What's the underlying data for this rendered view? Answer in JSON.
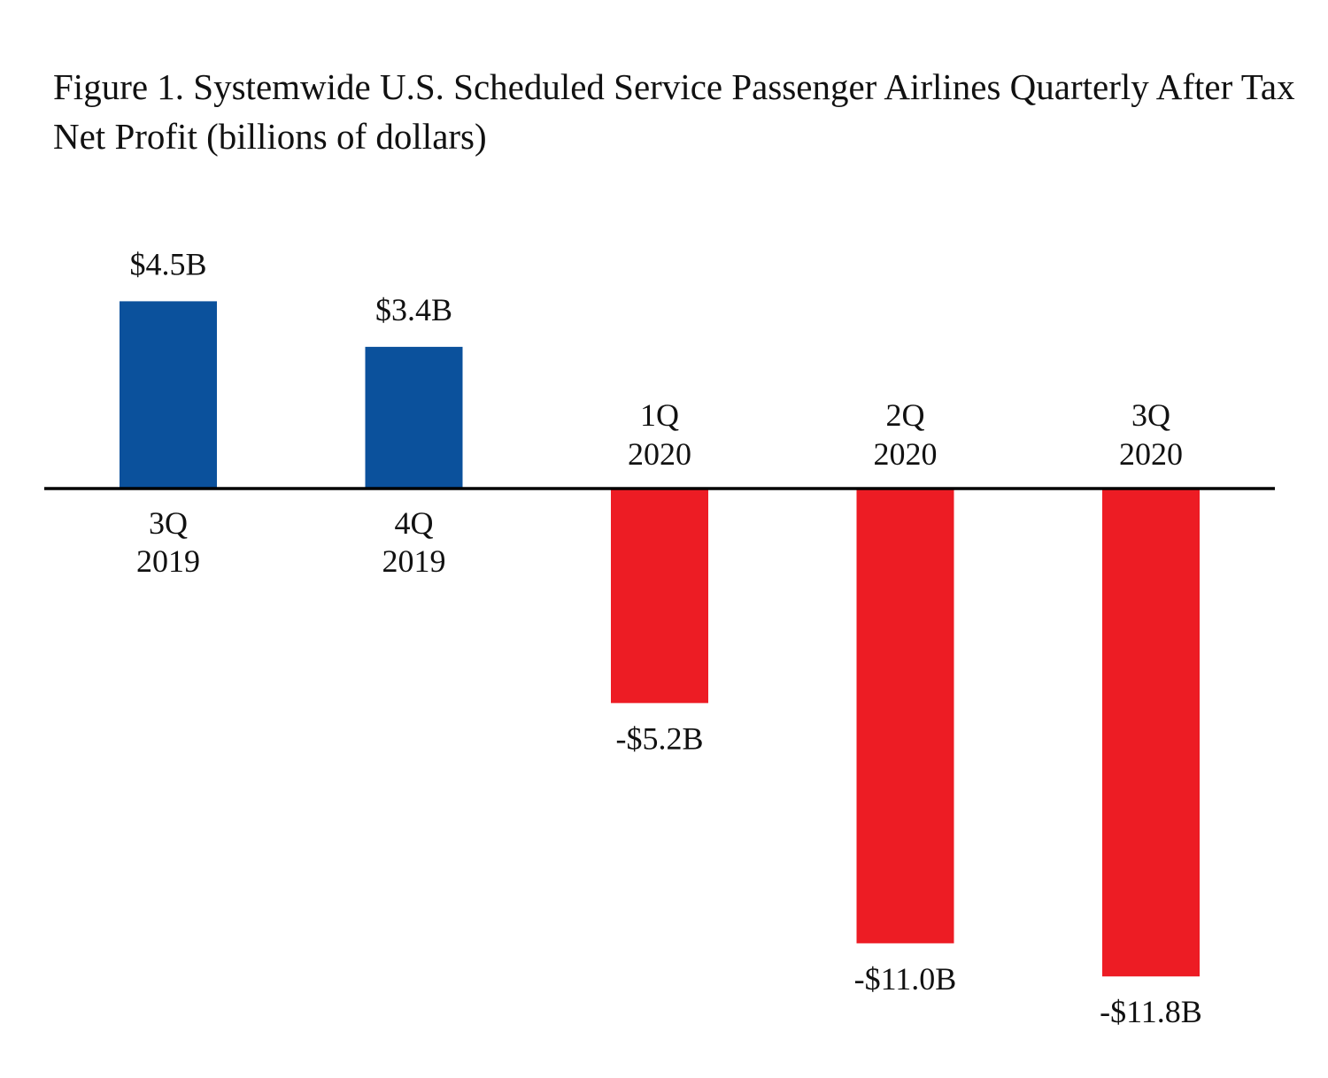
{
  "chart_data": {
    "type": "bar",
    "title": "Figure 1. Systemwide U.S. Scheduled Service Passenger Airlines Quarterly After Tax Net Profit (billions of dollars)",
    "xlabel": "",
    "ylabel": "",
    "categories": [
      {
        "quarter": "3Q",
        "year": "2019"
      },
      {
        "quarter": "4Q",
        "year": "2019"
      },
      {
        "quarter": "1Q",
        "year": "2020"
      },
      {
        "quarter": "2Q",
        "year": "2020"
      },
      {
        "quarter": "3Q",
        "year": "2020"
      }
    ],
    "values": [
      4.5,
      3.4,
      -5.2,
      -11.0,
      -11.8
    ],
    "data_labels": [
      "$4.5B",
      "$3.4B",
      "-$5.2B",
      "-$11.0B",
      "-$11.8B"
    ],
    "ylim": [
      -11.8,
      4.5
    ],
    "grid": false,
    "legend": "none",
    "colors": {
      "positive": "#0b519c",
      "negative": "#ed1c24",
      "axis": "#000000"
    }
  }
}
